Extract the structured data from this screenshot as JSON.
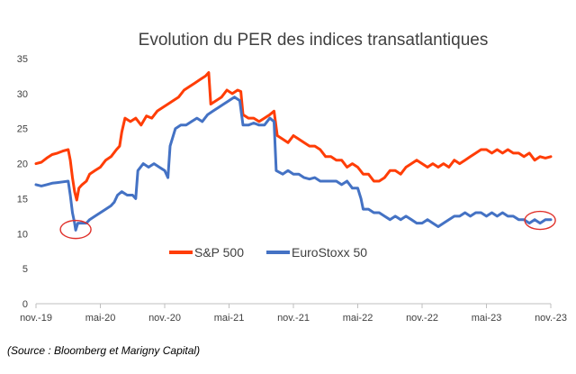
{
  "colors": {
    "sp500": "#ff3d06",
    "eurostoxx": "#4472c4",
    "axis": "#bfbfbf",
    "highlight": "#e0302a"
  },
  "source": "(Source : Bloomberg et Marigny Capital)",
  "chart_data": {
    "type": "line",
    "title": "Evolution du PER des indices transatlantiques",
    "xlabel": "",
    "ylabel": "",
    "x_tick_labels": [
      "nov.-19",
      "mai-20",
      "nov.-20",
      "mai-21",
      "nov.-21",
      "mai-22",
      "nov.-22",
      "mai-23",
      "nov.-23"
    ],
    "x_unit": "months since nov.-19",
    "xlim": [
      0,
      48
    ],
    "ylim": [
      0,
      35
    ],
    "yticks": [
      0,
      5,
      10,
      15,
      20,
      25,
      30,
      35
    ],
    "grid": false,
    "legend": "inside-bottom-center",
    "highlights": [
      {
        "series": "EuroStoxx 50",
        "x": 3.7,
        "y": 10.6
      },
      {
        "series": "EuroStoxx 50",
        "x": 47.0,
        "y": 11.9
      }
    ],
    "series": [
      {
        "name": "S&P 500",
        "color": "#ff3d06",
        "points": [
          [
            0,
            20.0
          ],
          [
            0.5,
            20.2
          ],
          [
            1,
            20.8
          ],
          [
            1.5,
            21.3
          ],
          [
            2,
            21.5
          ],
          [
            2.5,
            21.8
          ],
          [
            3,
            22.0
          ],
          [
            3.2,
            20.5
          ],
          [
            3.4,
            18.0
          ],
          [
            3.6,
            16.0
          ],
          [
            3.8,
            14.8
          ],
          [
            4.0,
            16.5
          ],
          [
            4.3,
            17.0
          ],
          [
            4.7,
            17.5
          ],
          [
            5.0,
            18.5
          ],
          [
            5.5,
            19.0
          ],
          [
            6.0,
            19.5
          ],
          [
            6.5,
            20.5
          ],
          [
            7.0,
            21.0
          ],
          [
            7.5,
            22.0
          ],
          [
            7.8,
            22.5
          ],
          [
            8.0,
            24.5
          ],
          [
            8.3,
            26.5
          ],
          [
            8.8,
            26.0
          ],
          [
            9.3,
            26.5
          ],
          [
            9.8,
            25.5
          ],
          [
            10.3,
            26.8
          ],
          [
            10.8,
            26.5
          ],
          [
            11.3,
            27.5
          ],
          [
            11.8,
            28.0
          ],
          [
            12.3,
            28.5
          ],
          [
            12.8,
            29.0
          ],
          [
            13.3,
            29.5
          ],
          [
            13.8,
            30.5
          ],
          [
            14.3,
            31.0
          ],
          [
            14.8,
            31.5
          ],
          [
            15.3,
            32.0
          ],
          [
            15.8,
            32.5
          ],
          [
            16.1,
            33.0
          ],
          [
            16.3,
            28.5
          ],
          [
            16.8,
            29.0
          ],
          [
            17.3,
            29.5
          ],
          [
            17.8,
            30.5
          ],
          [
            18.3,
            30.0
          ],
          [
            18.8,
            30.5
          ],
          [
            19.1,
            30.3
          ],
          [
            19.3,
            27.0
          ],
          [
            19.8,
            26.5
          ],
          [
            20.3,
            26.5
          ],
          [
            20.8,
            26.0
          ],
          [
            21.3,
            26.5
          ],
          [
            21.8,
            27.0
          ],
          [
            22.2,
            27.5
          ],
          [
            22.5,
            24.0
          ],
          [
            23.0,
            23.5
          ],
          [
            23.5,
            23.0
          ],
          [
            24.0,
            24.0
          ],
          [
            24.5,
            23.5
          ],
          [
            25.0,
            23.0
          ],
          [
            25.5,
            22.5
          ],
          [
            26.0,
            22.5
          ],
          [
            26.5,
            22.0
          ],
          [
            27.0,
            21.0
          ],
          [
            27.5,
            21.0
          ],
          [
            28.0,
            20.5
          ],
          [
            28.5,
            20.5
          ],
          [
            29.0,
            19.5
          ],
          [
            29.5,
            20.0
          ],
          [
            30.0,
            19.5
          ],
          [
            30.5,
            18.5
          ],
          [
            31.0,
            18.5
          ],
          [
            31.5,
            17.5
          ],
          [
            32.0,
            17.5
          ],
          [
            32.5,
            18.0
          ],
          [
            33.0,
            19.0
          ],
          [
            33.5,
            19.0
          ],
          [
            34.0,
            18.5
          ],
          [
            34.5,
            19.5
          ],
          [
            35.0,
            20.0
          ],
          [
            35.5,
            20.5
          ],
          [
            36.0,
            20.0
          ],
          [
            36.5,
            19.5
          ],
          [
            37.0,
            20.0
          ],
          [
            37.5,
            19.5
          ],
          [
            38.0,
            20.0
          ],
          [
            38.5,
            19.5
          ],
          [
            39.0,
            20.5
          ],
          [
            39.5,
            20.0
          ],
          [
            40.0,
            20.5
          ],
          [
            40.5,
            21.0
          ],
          [
            41.0,
            21.5
          ],
          [
            41.5,
            22.0
          ],
          [
            42.0,
            22.0
          ],
          [
            42.5,
            21.5
          ],
          [
            43.0,
            22.0
          ],
          [
            43.5,
            21.5
          ],
          [
            44.0,
            22.0
          ],
          [
            44.5,
            21.5
          ],
          [
            45.0,
            21.5
          ],
          [
            45.5,
            21.0
          ],
          [
            46.0,
            21.5
          ],
          [
            46.5,
            20.5
          ],
          [
            47.0,
            21.0
          ],
          [
            47.5,
            20.8
          ],
          [
            48.0,
            21.0
          ]
        ]
      },
      {
        "name": "EuroStoxx 50",
        "color": "#4472c4",
        "points": [
          [
            0,
            17.0
          ],
          [
            0.5,
            16.8
          ],
          [
            1,
            17.0
          ],
          [
            1.5,
            17.2
          ],
          [
            2,
            17.3
          ],
          [
            2.5,
            17.4
          ],
          [
            3,
            17.5
          ],
          [
            3.2,
            15.5
          ],
          [
            3.4,
            13.0
          ],
          [
            3.6,
            11.5
          ],
          [
            3.7,
            10.5
          ],
          [
            3.9,
            11.5
          ],
          [
            4.2,
            11.5
          ],
          [
            4.7,
            11.5
          ],
          [
            5.0,
            12.0
          ],
          [
            5.5,
            12.5
          ],
          [
            6.0,
            13.0
          ],
          [
            6.5,
            13.5
          ],
          [
            7.0,
            14.0
          ],
          [
            7.3,
            14.5
          ],
          [
            7.6,
            15.5
          ],
          [
            8.0,
            16.0
          ],
          [
            8.5,
            15.5
          ],
          [
            9.0,
            15.5
          ],
          [
            9.3,
            15.0
          ],
          [
            9.5,
            19.0
          ],
          [
            10.0,
            20.0
          ],
          [
            10.5,
            19.5
          ],
          [
            11.0,
            20.0
          ],
          [
            11.5,
            19.5
          ],
          [
            12.0,
            19.0
          ],
          [
            12.3,
            18.0
          ],
          [
            12.5,
            22.5
          ],
          [
            13.0,
            25.0
          ],
          [
            13.5,
            25.5
          ],
          [
            14.0,
            25.5
          ],
          [
            14.5,
            26.0
          ],
          [
            15.0,
            26.5
          ],
          [
            15.5,
            26.0
          ],
          [
            16.0,
            27.0
          ],
          [
            16.5,
            27.5
          ],
          [
            17.0,
            28.0
          ],
          [
            17.5,
            28.5
          ],
          [
            18.0,
            29.0
          ],
          [
            18.5,
            29.5
          ],
          [
            19.0,
            29.0
          ],
          [
            19.3,
            25.5
          ],
          [
            19.8,
            25.5
          ],
          [
            20.3,
            25.8
          ],
          [
            20.8,
            25.5
          ],
          [
            21.3,
            25.5
          ],
          [
            21.8,
            26.5
          ],
          [
            22.2,
            26.0
          ],
          [
            22.4,
            19.0
          ],
          [
            23.0,
            18.5
          ],
          [
            23.5,
            19.0
          ],
          [
            24.0,
            18.5
          ],
          [
            24.5,
            18.5
          ],
          [
            25.0,
            18.0
          ],
          [
            25.5,
            17.8
          ],
          [
            26.0,
            18.0
          ],
          [
            26.5,
            17.5
          ],
          [
            27.0,
            17.5
          ],
          [
            27.5,
            17.5
          ],
          [
            28.0,
            17.5
          ],
          [
            28.5,
            17.0
          ],
          [
            29.0,
            17.5
          ],
          [
            29.5,
            16.5
          ],
          [
            30.0,
            16.5
          ],
          [
            30.3,
            15.0
          ],
          [
            30.5,
            13.5
          ],
          [
            31.0,
            13.5
          ],
          [
            31.5,
            13.0
          ],
          [
            32.0,
            13.0
          ],
          [
            32.5,
            12.5
          ],
          [
            33.0,
            12.0
          ],
          [
            33.5,
            12.5
          ],
          [
            34.0,
            12.0
          ],
          [
            34.5,
            12.5
          ],
          [
            35.0,
            12.0
          ],
          [
            35.5,
            11.5
          ],
          [
            36.0,
            11.5
          ],
          [
            36.5,
            12.0
          ],
          [
            37.0,
            11.5
          ],
          [
            37.5,
            11.0
          ],
          [
            38.0,
            11.5
          ],
          [
            38.5,
            12.0
          ],
          [
            39.0,
            12.5
          ],
          [
            39.5,
            12.5
          ],
          [
            40.0,
            13.0
          ],
          [
            40.5,
            12.5
          ],
          [
            41.0,
            13.0
          ],
          [
            41.5,
            13.0
          ],
          [
            42.0,
            12.5
          ],
          [
            42.5,
            13.0
          ],
          [
            43.0,
            12.5
          ],
          [
            43.5,
            13.0
          ],
          [
            44.0,
            12.5
          ],
          [
            44.5,
            12.5
          ],
          [
            45.0,
            12.0
          ],
          [
            45.5,
            12.0
          ],
          [
            46.0,
            11.5
          ],
          [
            46.5,
            12.0
          ],
          [
            47.0,
            11.5
          ],
          [
            47.5,
            12.0
          ],
          [
            48.0,
            12.0
          ]
        ]
      }
    ]
  }
}
